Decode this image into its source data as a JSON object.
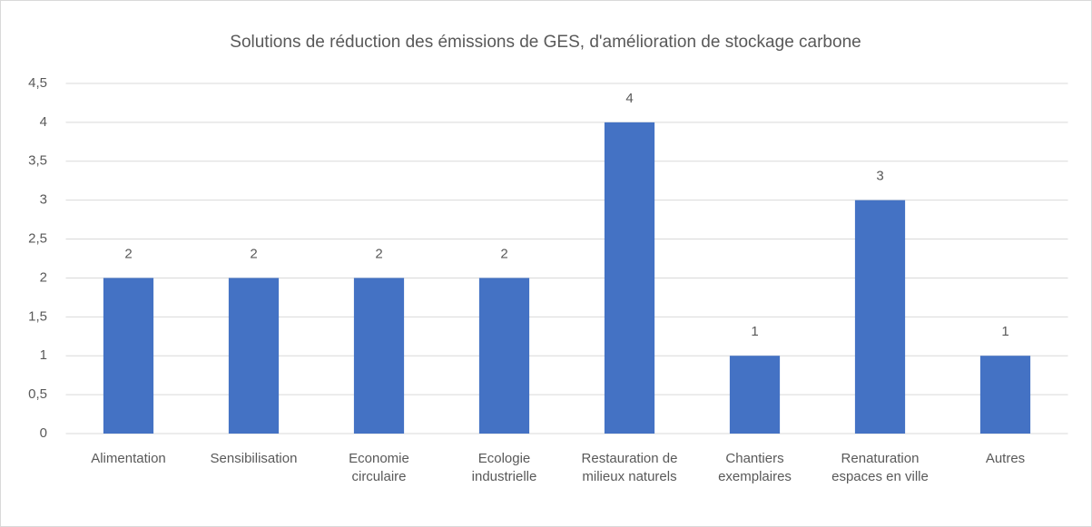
{
  "chart_data": {
    "type": "bar",
    "title": "Solutions de réduction des émissions de GES, d'amélioration de stockage carbone",
    "categories": [
      "Alimentation",
      "Sensibilisation",
      "Economie circulaire",
      "Ecologie industrielle",
      "Restauration de milieux naturels",
      "Chantiers exemplaires",
      "Renaturation espaces en ville",
      "Autres"
    ],
    "values": [
      2,
      2,
      2,
      2,
      4,
      1,
      3,
      1
    ],
    "color": "#4472c4",
    "ylim": [
      0,
      4.5
    ],
    "yticks": [
      0,
      {
        "value": 0.5,
        "label": "0,5"
      },
      1,
      {
        "value": 1.5,
        "label": "1,5"
      },
      2,
      {
        "value": 2.5,
        "label": "2,5"
      },
      3,
      {
        "value": 3.5,
        "label": "3,5"
      },
      4,
      {
        "value": 4.5,
        "label": "4,5"
      }
    ],
    "grid": true
  }
}
